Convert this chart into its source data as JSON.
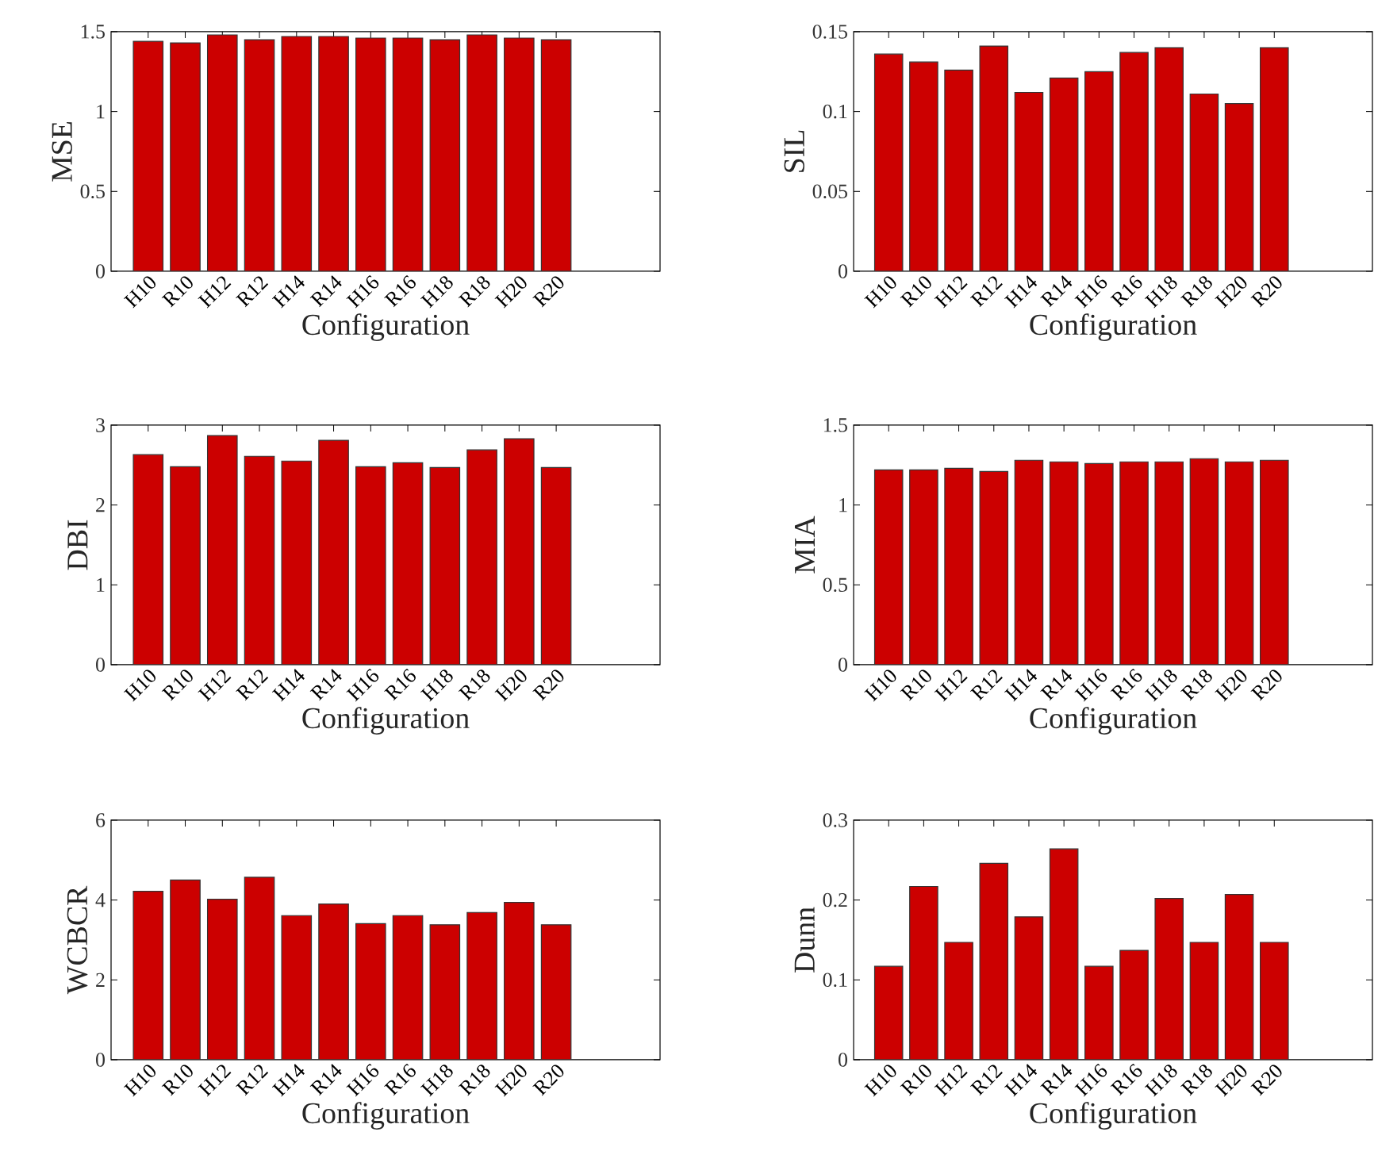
{
  "chart_data": [
    {
      "type": "bar",
      "categories": [
        "H10",
        "R10",
        "H12",
        "R12",
        "H14",
        "R14",
        "H16",
        "R16",
        "H18",
        "R18",
        "H20",
        "R20"
      ],
      "values": [
        1.44,
        1.43,
        1.48,
        1.45,
        1.47,
        1.47,
        1.46,
        1.46,
        1.45,
        1.48,
        1.46,
        1.45
      ],
      "color": "#cc0000",
      "xlabel": "Configuration",
      "ylabel": "MSE",
      "ylim": [
        0,
        1.5
      ],
      "yticks": [
        0,
        0.5,
        1,
        1.5
      ]
    },
    {
      "type": "bar",
      "categories": [
        "H10",
        "R10",
        "H12",
        "R12",
        "H14",
        "R14",
        "H16",
        "R16",
        "H18",
        "R18",
        "H20",
        "R20"
      ],
      "values": [
        0.136,
        0.131,
        0.126,
        0.141,
        0.112,
        0.121,
        0.125,
        0.137,
        0.14,
        0.111,
        0.105,
        0.14
      ],
      "color": "#cc0000",
      "xlabel": "Configuration",
      "ylabel": "SIL",
      "ylim": [
        0,
        0.15
      ],
      "yticks": [
        0,
        0.05,
        0.1,
        0.15
      ]
    },
    {
      "type": "bar",
      "categories": [
        "H10",
        "R10",
        "H12",
        "R12",
        "H14",
        "R14",
        "H16",
        "R16",
        "H18",
        "R18",
        "H20",
        "R20"
      ],
      "values": [
        2.63,
        2.48,
        2.87,
        2.61,
        2.55,
        2.81,
        2.48,
        2.53,
        2.47,
        2.69,
        2.83,
        2.47
      ],
      "color": "#cc0000",
      "xlabel": "Configuration",
      "ylabel": "DBI",
      "ylim": [
        0,
        3
      ],
      "yticks": [
        0,
        1,
        2,
        3
      ]
    },
    {
      "type": "bar",
      "categories": [
        "H10",
        "R10",
        "H12",
        "R12",
        "H14",
        "R14",
        "H16",
        "R16",
        "H18",
        "R18",
        "H20",
        "R20"
      ],
      "values": [
        1.22,
        1.22,
        1.23,
        1.21,
        1.28,
        1.27,
        1.26,
        1.27,
        1.27,
        1.29,
        1.27,
        1.28
      ],
      "color": "#cc0000",
      "xlabel": "Configuration",
      "ylabel": "MIA",
      "ylim": [
        0,
        1.5
      ],
      "yticks": [
        0,
        0.5,
        1,
        1.5
      ]
    },
    {
      "type": "bar",
      "categories": [
        "H10",
        "R10",
        "H12",
        "R12",
        "H14",
        "R14",
        "H16",
        "R16",
        "H18",
        "R18",
        "H20",
        "R20"
      ],
      "values": [
        4.22,
        4.5,
        4.02,
        4.57,
        3.61,
        3.9,
        3.41,
        3.61,
        3.38,
        3.69,
        3.94,
        3.38
      ],
      "color": "#cc0000",
      "xlabel": "Configuration",
      "ylabel": "WCBCR",
      "ylim": [
        0,
        6
      ],
      "yticks": [
        0,
        2,
        4,
        6
      ]
    },
    {
      "type": "bar",
      "categories": [
        "H10",
        "R10",
        "H12",
        "R12",
        "H14",
        "R14",
        "H16",
        "R16",
        "H18",
        "R18",
        "H20",
        "R20"
      ],
      "values": [
        0.117,
        0.217,
        0.147,
        0.246,
        0.179,
        0.264,
        0.117,
        0.137,
        0.202,
        0.147,
        0.207,
        0.147
      ],
      "color": "#cc0000",
      "xlabel": "Configuration",
      "ylabel": "Dunn",
      "ylim": [
        0,
        0.3
      ],
      "yticks": [
        0,
        0.1,
        0.2,
        0.3
      ]
    }
  ]
}
